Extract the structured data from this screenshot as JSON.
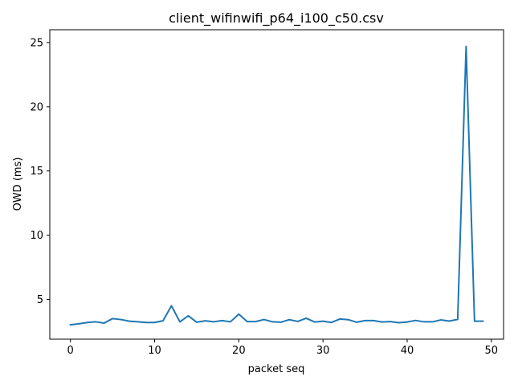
{
  "chart_data": {
    "type": "line",
    "title": "client_wifinwifi_p64_i100_c50.csv",
    "xlabel": "packet seq",
    "ylabel": "OWD (ms)",
    "xlim": [
      -2.45,
      51.45
    ],
    "ylim": [
      1.9,
      26.0
    ],
    "xticks": [
      0,
      10,
      20,
      30,
      40,
      50
    ],
    "yticks": [
      5,
      10,
      15,
      20,
      25
    ],
    "grid": false,
    "color": "#1f77b4",
    "series": [
      {
        "x": [
          0,
          1,
          2,
          3,
          4,
          5,
          6,
          7,
          8,
          9,
          10,
          11,
          12,
          13,
          14,
          15,
          16,
          17,
          18,
          19,
          20,
          21,
          22,
          23,
          24,
          25,
          26,
          27,
          28,
          29,
          30,
          31,
          32,
          33,
          34,
          35,
          36,
          37,
          38,
          39,
          40,
          41,
          42,
          43,
          44,
          45,
          46,
          47,
          48,
          49
        ],
        "values": [
          3.02,
          3.1,
          3.2,
          3.25,
          3.15,
          3.5,
          3.43,
          3.3,
          3.25,
          3.2,
          3.2,
          3.33,
          4.5,
          3.25,
          3.72,
          3.22,
          3.33,
          3.25,
          3.35,
          3.25,
          3.85,
          3.27,
          3.27,
          3.43,
          3.25,
          3.22,
          3.42,
          3.28,
          3.53,
          3.24,
          3.3,
          3.2,
          3.47,
          3.42,
          3.22,
          3.35,
          3.35,
          3.24,
          3.27,
          3.18,
          3.24,
          3.36,
          3.25,
          3.25,
          3.4,
          3.31,
          3.44,
          24.7,
          3.3,
          3.3
        ]
      }
    ]
  }
}
